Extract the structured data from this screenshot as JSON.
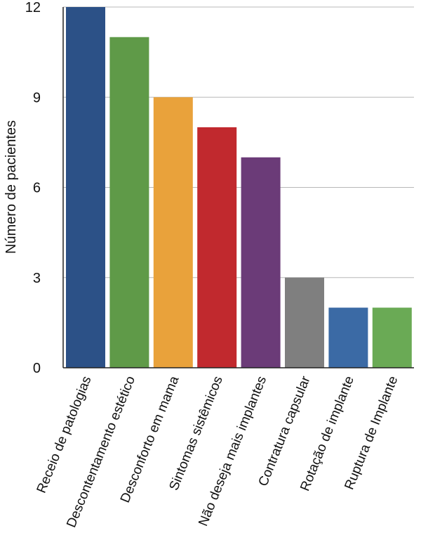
{
  "chart_data": {
    "type": "bar",
    "title": "",
    "xlabel": "",
    "ylabel": "Número de pacientes",
    "ylim": [
      0,
      12
    ],
    "yticks": [
      0,
      3,
      6,
      9,
      12
    ],
    "grid": true,
    "categories": [
      "Receio de patologias",
      "Descontentamento estético",
      "Desconforto em mama",
      "Sintomas sistêmicos",
      "Não deseja mais implantes",
      "Contratura capsular",
      "Rotação de implante",
      "Ruptura de Implante"
    ],
    "values": [
      12,
      11,
      9,
      8,
      7,
      3,
      2,
      2
    ],
    "colors": [
      "#2c5187",
      "#5f9a48",
      "#e9a23b",
      "#c1292e",
      "#6b3b78",
      "#7f7f7f",
      "#3b6aa5",
      "#6aaa55"
    ]
  }
}
